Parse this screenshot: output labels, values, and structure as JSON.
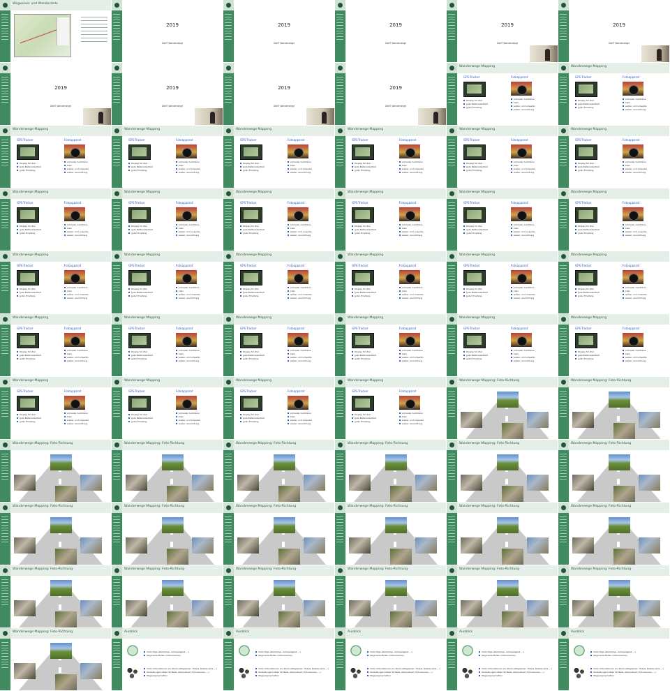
{
  "slides": {
    "overview": {
      "title": "Wegweiser und Wanderziele"
    },
    "title_slide": {
      "year": "2019",
      "event": "LWdT Wanderwege"
    },
    "mapping": {
      "title": "Wanderwege Mapping",
      "left": {
        "heading": "GPS-Tracker",
        "items": [
          "Display für Ziel",
          "gute Batterielaufzeit",
          "guter Empfang"
        ]
      },
      "right": {
        "heading": "Fotoapparat",
        "items": [
          "schneller Autofokus",
          "klein",
          "weiter- und enweitei",
          "weiter: Ausrichtung"
        ]
      }
    },
    "photo_direction": {
      "title": "Wanderwege Mapping: Foto-Richtung"
    },
    "outlook": {
      "title": "Ausblick",
      "items_a": [
        "mehr Tags (Routentyp, Schwierigkeit, ...)",
        "Wegmarke-Rollen unterscheiden"
      ],
      "items_b": [
        "mehr Informationen zur Route (Wegweiser, Hotels, Restaurants, ...)",
        "Verlaufe (gerichtete Verläufe, Alternativen, Exkursionen, ...)",
        "Wegeeigenschaften"
      ]
    }
  },
  "sequence": [
    "overview",
    "title_slide",
    "title_slide",
    "title_slide",
    "title_slide_speaker",
    "title_slide_speaker",
    "title_slide",
    "title_slide",
    "title_slide",
    "title_slide",
    "mapping",
    "mapping",
    "mapping",
    "mapping",
    "mapping",
    "mapping",
    "mapping",
    "mapping",
    "mapping",
    "mapping",
    "mapping",
    "mapping",
    "mapping",
    "mapping",
    "mapping",
    "mapping",
    "mapping",
    "mapping",
    "mapping",
    "mapping",
    "mapping",
    "mapping",
    "mapping",
    "mapping",
    "mapping",
    "mapping",
    "mapping",
    "mapping",
    "mapping",
    "mapping",
    "photo_direction",
    "photo_direction",
    "photo_direction",
    "photo_direction",
    "photo_direction",
    "photo_direction",
    "photo_direction",
    "photo_direction",
    "photo_direction",
    "photo_direction",
    "photo_direction",
    "photo_direction",
    "photo_direction",
    "photo_direction",
    "photo_direction",
    "photo_direction",
    "photo_direction",
    "photo_direction",
    "photo_direction",
    "photo_direction",
    "photo_direction",
    "outlook",
    "outlook",
    "outlook",
    "outlook",
    "outlook"
  ],
  "speaker_tiles": [
    4,
    5,
    6,
    7,
    8,
    9,
    10
  ],
  "colors": {
    "sidebar": "#3f8a5f",
    "header": "#e5efe8",
    "link": "#2f5bbd"
  }
}
